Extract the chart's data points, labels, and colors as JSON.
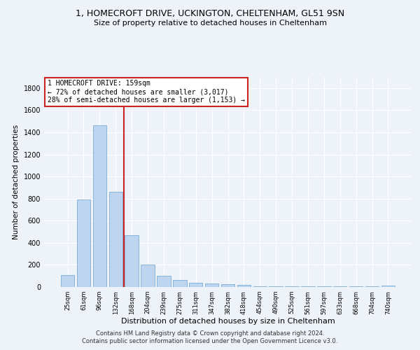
{
  "title_line1": "1, HOMECROFT DRIVE, UCKINGTON, CHELTENHAM, GL51 9SN",
  "title_line2": "Size of property relative to detached houses in Cheltenham",
  "xlabel": "Distribution of detached houses by size in Cheltenham",
  "ylabel": "Number of detached properties",
  "categories": [
    "25sqm",
    "61sqm",
    "96sqm",
    "132sqm",
    "168sqm",
    "204sqm",
    "239sqm",
    "275sqm",
    "311sqm",
    "347sqm",
    "382sqm",
    "418sqm",
    "454sqm",
    "490sqm",
    "525sqm",
    "561sqm",
    "597sqm",
    "633sqm",
    "668sqm",
    "704sqm",
    "740sqm"
  ],
  "values": [
    110,
    790,
    1460,
    860,
    470,
    200,
    100,
    65,
    40,
    30,
    25,
    20,
    5,
    5,
    5,
    5,
    5,
    5,
    5,
    5,
    15
  ],
  "bar_color": "#bdd5ee",
  "bar_edge_color": "#7aadd4",
  "annotation_line1": "1 HOMECROFT DRIVE: 159sqm",
  "annotation_line2": "← 72% of detached houses are smaller (3,017)",
  "annotation_line3": "28% of semi-detached houses are larger (1,153) →",
  "vline_color": "#cc2222",
  "box_edge_color": "#cc2222",
  "footnote_line1": "Contains HM Land Registry data © Crown copyright and database right 2024.",
  "footnote_line2": "Contains public sector information licensed under the Open Government Licence v3.0.",
  "ylim": [
    0,
    1900
  ],
  "yticks": [
    0,
    200,
    400,
    600,
    800,
    1000,
    1200,
    1400,
    1600,
    1800
  ],
  "bg_color": "#eef2f9",
  "plot_bg_color": "#eef2f9",
  "grid_color": "#ffffff"
}
